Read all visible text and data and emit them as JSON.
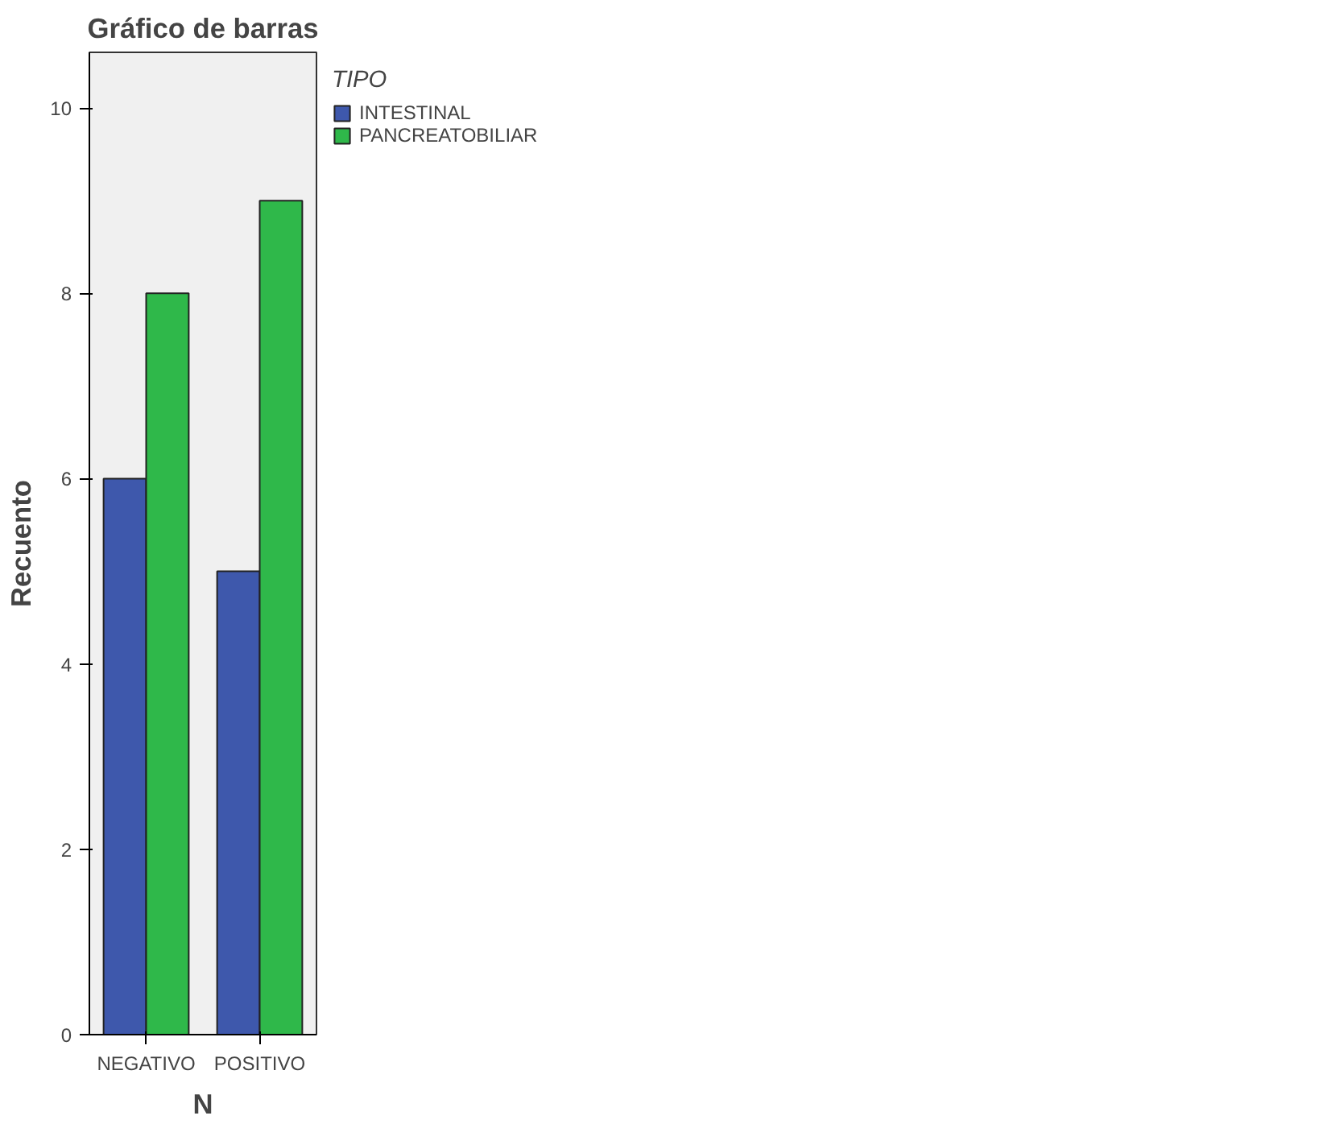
{
  "chart_data": {
    "type": "bar",
    "title": "Gráfico de barras",
    "xlabel": "N",
    "ylabel": "Recuento",
    "legend_title": "TIPO",
    "categories": [
      "NEGATIVO",
      "POSITIVO"
    ],
    "series": [
      {
        "name": "INTESTINAL",
        "color": "#3e58ac",
        "values": [
          6,
          5
        ]
      },
      {
        "name": "PANCREATOBILIAR",
        "color": "#2fb84a",
        "values": [
          8,
          9
        ]
      }
    ],
    "ylim": [
      0,
      10.6
    ],
    "yticks": [
      0,
      2,
      4,
      6,
      8,
      10
    ],
    "grid": false,
    "legend": "right"
  }
}
